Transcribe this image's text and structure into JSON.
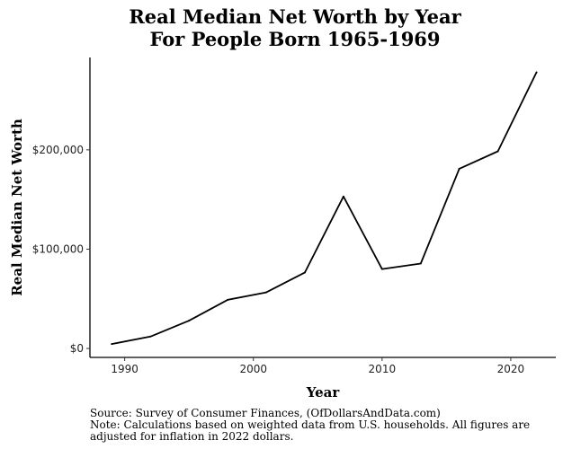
{
  "chart_data": {
    "type": "line",
    "title": "Real Median Net Worth by Year",
    "subtitle": "For People Born 1965-1969",
    "xlabel": "Year",
    "ylabel": "Real Median Net Worth",
    "x_ticks": [
      1990,
      2000,
      2010,
      2020
    ],
    "x_tick_labels": [
      "1990",
      "2000",
      "2010",
      "2020"
    ],
    "y_ticks": [
      0,
      100000,
      200000
    ],
    "y_tick_labels": [
      "$0",
      "$100,000",
      "$200,000"
    ],
    "xlim": [
      1987.3,
      2023.5
    ],
    "ylim": [
      -9000,
      293000
    ],
    "grid": false,
    "series": [
      {
        "name": "Real Median Net Worth",
        "color": "#000000",
        "x": [
          1989,
          1992,
          1995,
          1998,
          2001,
          2004,
          2007,
          2010,
          2013,
          2016,
          2019,
          2022
        ],
        "values": [
          4500,
          12000,
          28000,
          49000,
          56500,
          76500,
          153000,
          80000,
          85500,
          181000,
          198500,
          278000
        ]
      }
    ]
  },
  "footer": {
    "source": "Source:  Survey of Consumer Finances, (OfDollarsAndData.com)",
    "note_line1": "Note: Calculations based on weighted data from U.S. households. All figures are",
    "note_line2": "adjusted for inflation in 2022 dollars."
  }
}
